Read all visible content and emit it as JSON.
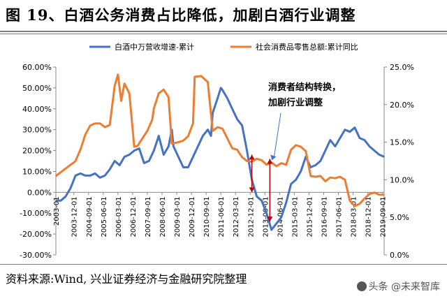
{
  "header": {
    "title": "图 19、白酒公务消费占比降低，加剧白酒行业调整"
  },
  "footer": {
    "source": "资料来源:Wind, 兴业证券经济与金融研究院整理"
  },
  "watermark": {
    "text": "头条 @未来智库"
  },
  "chart_data": {
    "type": "line",
    "legend_position": "top",
    "grid": false,
    "series": [
      {
        "name": "白酒中万营收增速-累计",
        "axis": "left",
        "color": "#4472C4",
        "points": [
          [
            "2003-01",
            -4
          ],
          [
            "2003-04",
            -4
          ],
          [
            "2003-07",
            -2
          ],
          [
            "2003-10",
            2
          ],
          [
            "2004-01",
            8
          ],
          [
            "2004-04",
            9
          ],
          [
            "2004-07",
            8
          ],
          [
            "2004-10",
            8
          ],
          [
            "2005-01",
            9
          ],
          [
            "2005-04",
            7
          ],
          [
            "2005-07",
            8
          ],
          [
            "2005-10",
            11
          ],
          [
            "2006-01",
            15
          ],
          [
            "2006-04",
            13
          ],
          [
            "2006-07",
            17
          ],
          [
            "2006-10",
            18
          ],
          [
            "2007-01",
            20
          ],
          [
            "2007-04",
            21
          ],
          [
            "2007-07",
            14
          ],
          [
            "2007-10",
            15
          ],
          [
            "2008-01",
            20
          ],
          [
            "2008-04",
            27
          ],
          [
            "2008-07",
            18
          ],
          [
            "2008-10",
            22
          ],
          [
            "2008-12",
            30
          ],
          [
            "2009-01",
            22
          ],
          [
            "2009-04",
            17
          ],
          [
            "2009-07",
            12
          ],
          [
            "2009-10",
            12
          ],
          [
            "2010-01",
            17
          ],
          [
            "2010-04",
            22
          ],
          [
            "2010-07",
            27
          ],
          [
            "2010-10",
            30
          ],
          [
            "2010-12",
            27
          ],
          [
            "2011-01",
            38
          ],
          [
            "2011-04",
            45
          ],
          [
            "2011-06",
            50
          ],
          [
            "2011-07",
            49
          ],
          [
            "2011-10",
            45
          ],
          [
            "2012-01",
            40
          ],
          [
            "2012-04",
            35
          ],
          [
            "2012-07",
            32
          ],
          [
            "2012-10",
            20
          ],
          [
            "2013-01",
            6
          ],
          [
            "2013-04",
            -2
          ],
          [
            "2013-07",
            -4
          ],
          [
            "2013-10",
            -10
          ],
          [
            "2014-01",
            -18
          ],
          [
            "2014-04",
            -15
          ],
          [
            "2014-07",
            -12
          ],
          [
            "2014-10",
            -5
          ],
          [
            "2015-01",
            4
          ],
          [
            "2015-04",
            6
          ],
          [
            "2015-07",
            10
          ],
          [
            "2015-10",
            17
          ],
          [
            "2016-01",
            12
          ],
          [
            "2016-04",
            13
          ],
          [
            "2016-07",
            15
          ],
          [
            "2016-10",
            20
          ],
          [
            "2017-01",
            25
          ],
          [
            "2017-04",
            22
          ],
          [
            "2017-07",
            26
          ],
          [
            "2017-10",
            30
          ],
          [
            "2018-01",
            29
          ],
          [
            "2018-04",
            31
          ],
          [
            "2018-07",
            26
          ],
          [
            "2018-10",
            25
          ],
          [
            "2019-01",
            22
          ],
          [
            "2019-04",
            20
          ],
          [
            "2019-07",
            18
          ],
          [
            "2019-10",
            17
          ]
        ]
      },
      {
        "name": "社会消费品零售总额:累计同比",
        "axis": "right",
        "color": "#ED7D31",
        "points": [
          [
            "2003-01",
            10.5
          ],
          [
            "2003-04",
            11
          ],
          [
            "2003-07",
            11.5
          ],
          [
            "2003-10",
            12
          ],
          [
            "2003-12",
            12.3
          ],
          [
            "2004-01",
            12.5
          ],
          [
            "2004-04",
            14
          ],
          [
            "2004-07",
            16
          ],
          [
            "2004-10",
            17.2
          ],
          [
            "2005-01",
            17.5
          ],
          [
            "2005-04",
            17.5
          ],
          [
            "2005-07",
            17
          ],
          [
            "2005-10",
            17.3
          ],
          [
            "2006-01",
            22.5
          ],
          [
            "2006-03",
            24
          ],
          [
            "2006-05",
            20.5
          ],
          [
            "2006-07",
            22.8
          ],
          [
            "2006-10",
            21.5
          ],
          [
            "2007-01",
            14.4
          ],
          [
            "2007-03",
            14.5
          ],
          [
            "2007-06",
            15.5
          ],
          [
            "2007-09",
            16.5
          ],
          [
            "2007-12",
            18
          ],
          [
            "2008-01",
            19.5
          ],
          [
            "2008-04",
            21.5
          ],
          [
            "2008-07",
            22
          ],
          [
            "2008-10",
            21
          ],
          [
            "2008-12",
            14.8
          ],
          [
            "2009-04",
            15
          ],
          [
            "2009-07",
            15.2
          ],
          [
            "2009-10",
            15.8
          ],
          [
            "2010-01",
            17.5
          ],
          [
            "2010-02",
            23.7
          ],
          [
            "2010-06",
            23.8
          ],
          [
            "2010-10",
            23
          ],
          [
            "2011-01",
            16.5
          ],
          [
            "2011-04",
            17
          ],
          [
            "2011-07",
            16.8
          ],
          [
            "2011-10",
            15.5
          ],
          [
            "2012-01",
            14.2
          ],
          [
            "2012-04",
            14
          ],
          [
            "2012-07",
            13
          ],
          [
            "2012-10",
            12.5
          ],
          [
            "2013-01",
            12.4
          ],
          [
            "2013-04",
            12.8
          ],
          [
            "2013-07",
            12.6
          ],
          [
            "2013-10",
            12
          ],
          [
            "2014-01",
            12.3
          ],
          [
            "2014-04",
            11.8
          ],
          [
            "2014-07",
            12.2
          ],
          [
            "2014-10",
            12
          ],
          [
            "2015-01",
            14
          ],
          [
            "2015-04",
            14.6
          ],
          [
            "2015-07",
            14.4
          ],
          [
            "2015-10",
            13.8
          ],
          [
            "2016-01",
            10.5
          ],
          [
            "2016-04",
            10.4
          ],
          [
            "2016-07",
            10.5
          ],
          [
            "2016-10",
            9.8
          ],
          [
            "2017-01",
            10.3
          ],
          [
            "2017-04",
            10.2
          ],
          [
            "2017-07",
            10.4
          ],
          [
            "2017-10",
            10
          ],
          [
            "2018-01",
            7.2
          ],
          [
            "2018-04",
            6.5
          ],
          [
            "2018-07",
            6.8
          ],
          [
            "2018-10",
            7.5
          ],
          [
            "2019-01",
            8.1
          ],
          [
            "2019-04",
            8.3
          ],
          [
            "2019-07",
            8
          ],
          [
            "2019-10",
            8
          ]
        ]
      }
    ],
    "x_ticks": [
      "2003-01",
      "2003-12",
      "2004-09",
      "2005-06",
      "2006-03",
      "2006-12",
      "2007-09",
      "2008-06",
      "2009-03",
      "2009-12",
      "2010-09",
      "2011-06",
      "2012-03",
      "2012-12",
      "2013-09",
      "2014-06",
      "2015-03",
      "2015-12",
      "2016-09",
      "2017-06",
      "2018-03",
      "2018-12",
      "2019-09"
    ],
    "x_tick_labels": [
      "2003-01",
      "2003-12-01",
      "2004-09-01",
      "2005-06-01",
      "2006-03-01",
      "2006-12-01",
      "2007-09-01",
      "2008-06-01",
      "2009-03-01",
      "2009-12-01",
      "2010-09-01",
      "2011-06-01",
      "2012-03-01",
      "2012-12-01",
      "2013-09-01",
      "2014-06-01",
      "2015-03-01",
      "2015-12-01",
      "2016-09-01",
      "2017-06-01",
      "2018-03-01",
      "2018-12-01",
      "2019-09-01"
    ],
    "y_left": {
      "min": -30,
      "max": 60,
      "ticks": [
        -30,
        -20,
        -10,
        0,
        10,
        20,
        30,
        40,
        50,
        60
      ],
      "labels": [
        "-30.00%",
        "-20.00%",
        "-10.00%",
        "0.00%",
        "10.00%",
        "20.00%",
        "30.00%",
        "40.00%",
        "50.00%",
        "60.00%"
      ]
    },
    "y_right": {
      "min": 0,
      "max": 25,
      "ticks": [
        0,
        5,
        10,
        15,
        20,
        25
      ],
      "labels": [
        "0.0%",
        "5.0%",
        "10.0%",
        "15.0%",
        "20.0%",
        "25.0%"
      ]
    },
    "annotation": {
      "line1": "消费者结构转换，",
      "line2": "加剧行业调整",
      "color": "#C00000"
    },
    "markers": [
      {
        "x": "2013-01",
        "from": 18,
        "to": 0
      },
      {
        "x": "2013-12",
        "from": 16,
        "to": -14
      }
    ]
  }
}
